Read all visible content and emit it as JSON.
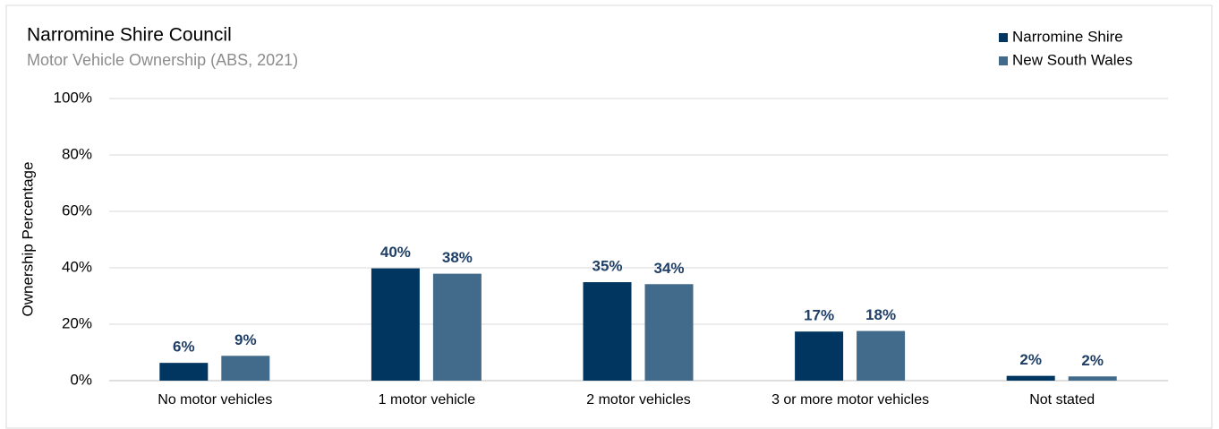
{
  "chart_data": {
    "type": "bar",
    "title": "Narromine Shire Council",
    "subtitle": "Motor Vehicle Ownership (ABS, 2021)",
    "y_label": "Ownership Percentage",
    "categories": [
      "No motor vehicles",
      "1 motor vehicle",
      "2 motor vehicles",
      "3 or more motor vehicles",
      "Not stated"
    ],
    "series": [
      {
        "name": "Narromine Shire",
        "color": "#003660",
        "values": [
          6.3,
          39.8,
          34.9,
          17.4,
          1.7
        ],
        "value_labels": [
          "6%",
          "40%",
          "35%",
          "17%",
          "2%"
        ]
      },
      {
        "name": "New South Wales",
        "color": "#426a8a",
        "values": [
          8.8,
          37.9,
          34.2,
          17.6,
          1.5
        ],
        "value_labels": [
          "9%",
          "38%",
          "34%",
          "18%",
          "2%"
        ]
      }
    ],
    "ylim": [
      0,
      100
    ],
    "yticks": [
      {
        "value": 0,
        "label": "0%"
      },
      {
        "value": 20,
        "label": "20%"
      },
      {
        "value": 40,
        "label": "40%"
      },
      {
        "value": 60,
        "label": "60%"
      },
      {
        "value": 80,
        "label": "80%"
      },
      {
        "value": 100,
        "label": "100%"
      }
    ],
    "grid": true,
    "legend": "top-right"
  }
}
